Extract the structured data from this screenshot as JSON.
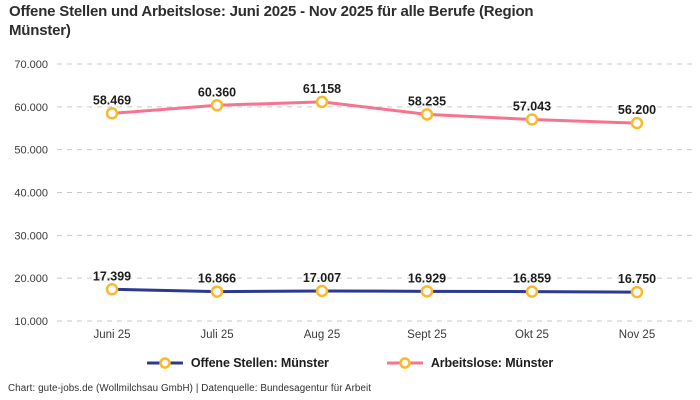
{
  "title": {
    "full": "Offene Stellen und Arbeitslose: Juni 2025 - Nov 2025 für alle Berufe (Region Münster)",
    "line1": "Offene Stellen und Arbeitslose: Juni 2025 - Nov 2025 für alle Berufe (Region",
    "line2": "Münster)"
  },
  "footer": {
    "text": "Chart: gute-jobs.de (Wollmilchsau GmbH) | Datenquelle: Bundesagentur für Arbeit"
  },
  "colors": {
    "title_text": "#2d2d2d",
    "data_label_text": "#1d1d1d",
    "tick_text": "#3a3a3a",
    "gridline": "#c9c9c9",
    "series_open_positions": "#2B3990",
    "series_unemployed": "#F7738F",
    "marker_ring": "#FBB929",
    "marker_fill": "#ffffff",
    "footer_text": "#2f2f2f"
  },
  "chart_data": {
    "type": "line",
    "title": "Offene Stellen und Arbeitslose: Juni 2025 - Nov 2025 für alle Berufe (Region Münster)",
    "categories": [
      "Juni 25",
      "Juli 25",
      "Aug 25",
      "Sept 25",
      "Okt 25",
      "Nov 25"
    ],
    "series": [
      {
        "name": "Offene Stellen: Münster",
        "color": "#2B3990",
        "values": [
          17399,
          16866,
          17007,
          16929,
          16859,
          16750
        ],
        "point_labels": [
          "17.399",
          "16.866",
          "17.007",
          "16.929",
          "16.859",
          "16.750"
        ]
      },
      {
        "name": "Arbeitslose: Münster",
        "color": "#F7738F",
        "values": [
          58469,
          60360,
          61158,
          58235,
          57043,
          56200
        ],
        "point_labels": [
          "58.469",
          "60.360",
          "61.158",
          "58.235",
          "57.043",
          "56.200"
        ]
      }
    ],
    "y_ticks": [
      {
        "label": "70.000",
        "value": 70000
      },
      {
        "label": "60.000",
        "value": 60000
      },
      {
        "label": "50.000",
        "value": 50000
      },
      {
        "label": "40.000",
        "value": 40000
      },
      {
        "label": "30.000",
        "value": 30000
      },
      {
        "label": "20.000",
        "value": 20000
      },
      {
        "label": "10.000",
        "value": 10000
      }
    ],
    "ylim": [
      10000,
      70000
    ],
    "xlabel": "",
    "ylabel": "",
    "grid": "horizontal-dashed",
    "legend_position": "bottom",
    "marker": {
      "shape": "ring",
      "fill": "#ffffff",
      "stroke": "#FBB929"
    }
  }
}
